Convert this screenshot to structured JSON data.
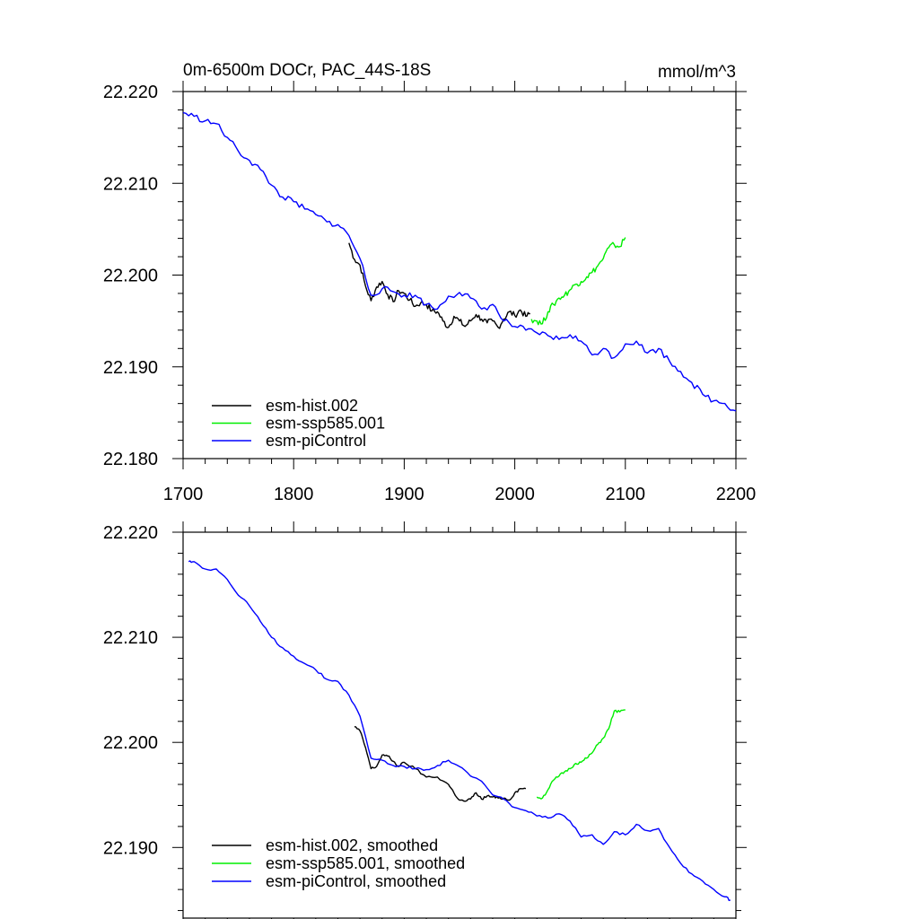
{
  "chart_data": [
    {
      "type": "line",
      "title_left": "0m-6500m DOCr, PAC_44S-18S",
      "title_right": "mmol/m^3",
      "xlabel": "",
      "ylabel": "",
      "xlim": [
        1700,
        2200
      ],
      "ylim": [
        22.18,
        22.22
      ],
      "x_ticks": [
        1700,
        1800,
        1900,
        2000,
        2100,
        2200
      ],
      "x_tick_labels": [
        "1700",
        "1800",
        "1900",
        "2000",
        "2100",
        "2200"
      ],
      "y_ticks": [
        22.18,
        22.19,
        22.2,
        22.21,
        22.22
      ],
      "y_tick_labels": [
        "22.180",
        "22.190",
        "22.200",
        "22.210",
        "22.220"
      ],
      "legend_position": "bottom-left",
      "series": [
        {
          "name": "esm-hist.002",
          "color": "#000000",
          "x": [
            1850,
            1855,
            1860,
            1865,
            1870,
            1875,
            1880,
            1885,
            1890,
            1895,
            1900,
            1905,
            1910,
            1915,
            1920,
            1925,
            1930,
            1935,
            1940,
            1945,
            1950,
            1955,
            1960,
            1965,
            1970,
            1975,
            1980,
            1985,
            1990,
            1995,
            2000,
            2005,
            2010,
            2014
          ],
          "y": [
            22.2035,
            22.2017,
            22.2011,
            22.1988,
            22.1972,
            22.1987,
            22.1993,
            22.1979,
            22.1971,
            22.1983,
            22.198,
            22.1973,
            22.1966,
            22.197,
            22.1968,
            22.1961,
            22.196,
            22.195,
            22.1943,
            22.1955,
            22.195,
            22.1944,
            22.195,
            22.1957,
            22.1952,
            22.1948,
            22.195,
            22.1943,
            22.1952,
            22.196,
            22.1956,
            22.1962,
            22.1955,
            22.1958
          ]
        },
        {
          "name": "esm-ssp585.001",
          "color": "#00ee00",
          "x": [
            2015,
            2020,
            2025,
            2030,
            2035,
            2040,
            2045,
            2050,
            2055,
            2060,
            2065,
            2070,
            2075,
            2080,
            2085,
            2090,
            2095,
            2100
          ],
          "y": [
            22.1952,
            22.195,
            22.1947,
            22.196,
            22.1968,
            22.1975,
            22.1978,
            22.1984,
            22.199,
            22.1993,
            22.1998,
            22.2003,
            22.201,
            22.2018,
            22.203,
            22.2033,
            22.2031,
            22.2041
          ]
        },
        {
          "name": "esm-piControl",
          "color": "#0000ff",
          "x": [
            1700,
            1710,
            1720,
            1730,
            1740,
            1750,
            1760,
            1770,
            1780,
            1790,
            1800,
            1810,
            1820,
            1830,
            1840,
            1850,
            1860,
            1870,
            1880,
            1890,
            1900,
            1910,
            1920,
            1930,
            1940,
            1950,
            1960,
            1970,
            1980,
            1990,
            2000,
            2010,
            2020,
            2030,
            2040,
            2050,
            2060,
            2070,
            2080,
            2090,
            2100,
            2110,
            2120,
            2130,
            2140,
            2150,
            2160,
            2170,
            2180,
            2190,
            2200
          ],
          "y": [
            22.2177,
            22.2173,
            22.2168,
            22.2165,
            22.215,
            22.2135,
            22.2125,
            22.2115,
            22.2098,
            22.2085,
            22.208,
            22.2072,
            22.2066,
            22.2058,
            22.2055,
            22.2043,
            22.2018,
            22.1978,
            22.1985,
            22.1982,
            22.1978,
            22.1978,
            22.1968,
            22.1963,
            22.1977,
            22.1981,
            22.1975,
            22.1963,
            22.1968,
            22.195,
            22.1944,
            22.194,
            22.1937,
            22.1934,
            22.193,
            22.1935,
            22.1928,
            22.1913,
            22.192,
            22.191,
            22.1925,
            22.1928,
            22.1915,
            22.192,
            22.1906,
            22.1895,
            22.1883,
            22.187,
            22.1863,
            22.186,
            22.1852
          ]
        }
      ]
    },
    {
      "type": "line",
      "title_left": "",
      "title_right": "",
      "xlabel": "",
      "ylabel": "",
      "xlim": [
        1700,
        2200
      ],
      "ylim": [
        22.185,
        22.22
      ],
      "x_ticks": [
        1700,
        1800,
        1900,
        2000,
        2100,
        2200
      ],
      "x_tick_labels": [],
      "y_ticks": [
        22.19,
        22.2,
        22.21,
        22.22
      ],
      "y_tick_labels": [
        "22.190",
        "22.200",
        "22.210",
        "22.220"
      ],
      "legend_position": "bottom-left",
      "series": [
        {
          "name": "esm-hist.002, smoothed",
          "color": "#000000",
          "x": [
            1855,
            1860,
            1865,
            1870,
            1875,
            1880,
            1885,
            1890,
            1895,
            1900,
            1910,
            1920,
            1930,
            1940,
            1945,
            1950,
            1955,
            1960,
            1965,
            1970,
            1975,
            1980,
            1985,
            1990,
            1995,
            2000,
            2005,
            2010
          ],
          "y": [
            22.2015,
            22.2011,
            22.1995,
            22.1975,
            22.1977,
            22.1988,
            22.1987,
            22.1982,
            22.1977,
            22.1981,
            22.1975,
            22.1967,
            22.1967,
            22.196,
            22.1952,
            22.1945,
            22.1944,
            22.1946,
            22.1952,
            22.1946,
            22.1949,
            22.1948,
            22.1947,
            22.1947,
            22.1945,
            22.1952,
            22.1956,
            22.1956
          ]
        },
        {
          "name": "esm-ssp585.001, smoothed",
          "color": "#00ee00",
          "x": [
            2020,
            2025,
            2030,
            2035,
            2040,
            2045,
            2050,
            2055,
            2060,
            2065,
            2070,
            2075,
            2080,
            2085,
            2090,
            2095,
            2100
          ],
          "y": [
            22.1948,
            22.1947,
            22.1955,
            22.1964,
            22.1968,
            22.1972,
            22.1975,
            22.198,
            22.1981,
            22.1985,
            22.199,
            22.1998,
            22.2004,
            22.2013,
            22.203,
            22.2029,
            22.2031
          ]
        },
        {
          "name": "esm-piControl, smoothed",
          "color": "#0000ff",
          "x": [
            1705,
            1710,
            1720,
            1730,
            1740,
            1750,
            1760,
            1770,
            1780,
            1790,
            1800,
            1810,
            1820,
            1830,
            1840,
            1850,
            1860,
            1870,
            1880,
            1890,
            1900,
            1910,
            1920,
            1930,
            1940,
            1950,
            1960,
            1970,
            1980,
            1990,
            2000,
            2010,
            2020,
            2030,
            2040,
            2050,
            2060,
            2070,
            2080,
            2090,
            2100,
            2110,
            2120,
            2130,
            2140,
            2150,
            2160,
            2170,
            2180,
            2190,
            2195
          ],
          "y": [
            22.2172,
            22.2172,
            22.2165,
            22.2165,
            22.2155,
            22.214,
            22.213,
            22.2115,
            22.21,
            22.209,
            22.2082,
            22.2075,
            22.2069,
            22.206,
            22.2058,
            22.2045,
            22.2025,
            22.1985,
            22.1983,
            22.1978,
            22.1977,
            22.1975,
            22.1974,
            22.1978,
            22.1983,
            22.1977,
            22.1968,
            22.1963,
            22.195,
            22.1946,
            22.1938,
            22.1935,
            22.193,
            22.1928,
            22.1932,
            22.1925,
            22.191,
            22.1912,
            22.1903,
            22.1915,
            22.1912,
            22.1922,
            22.1916,
            22.1918,
            22.19,
            22.1885,
            22.1875,
            22.1868,
            22.186,
            22.1853,
            22.185
          ]
        }
      ]
    }
  ]
}
